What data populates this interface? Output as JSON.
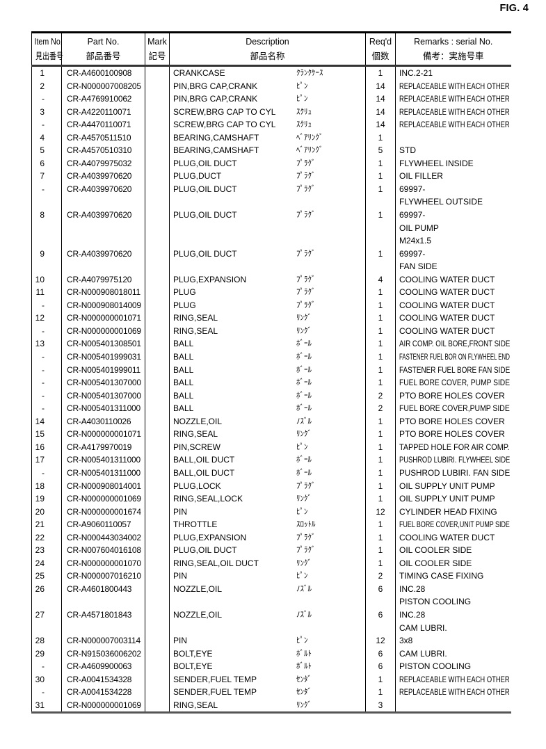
{
  "figure_label": "FIG. 4",
  "table": {
    "headers": {
      "item": {
        "en": "Item No.",
        "jp": "見出番号"
      },
      "part": {
        "en": "Part No.",
        "jp": "部品番号"
      },
      "mark": {
        "en": "Mark",
        "jp": "記号"
      },
      "desc": {
        "en": "Description",
        "jp": "部品名称"
      },
      "qty": {
        "en": "Req'd",
        "jp": "個数"
      },
      "remarks": {
        "en": "Remarks : serial No.",
        "jp": "備考：実施号車"
      }
    },
    "rows": [
      {
        "item": "1",
        "part": "CR-A4600100908",
        "mark": "",
        "desc": "CRANKCASE",
        "kana": "ｸﾗﾝｸｹｰｽ",
        "qty": "1",
        "remarks": [
          "INC.2-21"
        ]
      },
      {
        "item": "2",
        "part": "CR-N000007008205",
        "mark": "",
        "desc": "PIN,BRG CAP,CRANK",
        "kana": "ﾋﾟﾝ",
        "qty": "14",
        "remarks": [
          "REPLACEABLE WITH EACH OTHER"
        ]
      },
      {
        "item": "-",
        "part": "CR-A4769910062",
        "mark": "",
        "desc": "PIN,BRG CAP,CRANK",
        "kana": "ﾋﾟﾝ",
        "qty": "14",
        "remarks": [
          "REPLACEABLE WITH EACH OTHER"
        ]
      },
      {
        "item": "3",
        "part": "CR-A4220110071",
        "mark": "",
        "desc": "SCREW,BRG CAP TO CYL",
        "kana": "ｽｸﾘｭ",
        "qty": "14",
        "remarks": [
          "REPLACEABLE WITH EACH OTHER"
        ]
      },
      {
        "item": "-",
        "part": "CR-A4470110071",
        "mark": "",
        "desc": "SCREW,BRG CAP TO CYL",
        "kana": "ｽｸﾘｭ",
        "qty": "14",
        "remarks": [
          "REPLACEABLE WITH EACH OTHER"
        ]
      },
      {
        "item": "4",
        "part": "CR-A4570511510",
        "mark": "",
        "desc": "BEARING,CAMSHAFT",
        "kana": "ﾍﾞｱﾘﾝｸﾞ",
        "qty": "1",
        "remarks": []
      },
      {
        "item": "5",
        "part": "CR-A4570510310",
        "mark": "",
        "desc": "BEARING,CAMSHAFT",
        "kana": "ﾍﾞｱﾘﾝｸﾞ",
        "qty": "5",
        "remarks": [
          "STD"
        ]
      },
      {
        "item": "6",
        "part": "CR-A4079975032",
        "mark": "",
        "desc": "PLUG,OIL DUCT",
        "kana": "ﾌﾟﾗｸﾞ",
        "qty": "1",
        "remarks": [
          "FLYWHEEL INSIDE"
        ]
      },
      {
        "item": "7",
        "part": "CR-A4039970620",
        "mark": "",
        "desc": "PLUG,DUCT",
        "kana": "ﾌﾟﾗｸﾞ",
        "qty": "1",
        "remarks": [
          "OIL FILLER"
        ]
      },
      {
        "item": "-",
        "part": "CR-A4039970620",
        "mark": "",
        "desc": "PLUG,OIL DUCT",
        "kana": "ﾌﾟﾗｸﾞ",
        "qty": "1",
        "remarks": [
          "69997-",
          "FLYWHEEL OUTSIDE"
        ]
      },
      {
        "item": "8",
        "part": "CR-A4039970620",
        "mark": "",
        "desc": "PLUG,OIL DUCT",
        "kana": "ﾌﾟﾗｸﾞ",
        "qty": "1",
        "remarks": [
          "69997-",
          "OIL PUMP",
          "M24x1.5"
        ]
      },
      {
        "item": "9",
        "part": "CR-A4039970620",
        "mark": "",
        "desc": "PLUG,OIL DUCT",
        "kana": "ﾌﾟﾗｸﾞ",
        "qty": "1",
        "remarks": [
          "69997-",
          "FAN SIDE"
        ]
      },
      {
        "item": "10",
        "part": "CR-A4079975120",
        "mark": "",
        "desc": "PLUG,EXPANSION",
        "kana": "ﾌﾟﾗｸﾞ",
        "qty": "4",
        "remarks": [
          "COOLING WATER DUCT"
        ]
      },
      {
        "item": "11",
        "part": "CR-N000908018011",
        "mark": "",
        "desc": "PLUG",
        "kana": "ﾌﾟﾗｸﾞ",
        "qty": "1",
        "remarks": [
          "COOLING WATER DUCT"
        ]
      },
      {
        "item": "-",
        "part": "CR-N000908014009",
        "mark": "",
        "desc": "PLUG",
        "kana": "ﾌﾟﾗｸﾞ",
        "qty": "1",
        "remarks": [
          "COOLING WATER DUCT"
        ]
      },
      {
        "item": "12",
        "part": "CR-N000000001071",
        "mark": "",
        "desc": "RING,SEAL",
        "kana": "ﾘﾝｸﾞ",
        "qty": "1",
        "remarks": [
          "COOLING WATER DUCT"
        ]
      },
      {
        "item": "-",
        "part": "CR-N000000001069",
        "mark": "",
        "desc": "RING,SEAL",
        "kana": "ﾘﾝｸﾞ",
        "qty": "1",
        "remarks": [
          "COOLING WATER DUCT"
        ]
      },
      {
        "item": "13",
        "part": "CR-N005401308501",
        "mark": "",
        "desc": "BALL",
        "kana": "ﾎﾞｰﾙ",
        "qty": "1",
        "remarks": [
          "AIR COMP. OIL BORE,FRONT SIDE"
        ]
      },
      {
        "item": "-",
        "part": "CR-N005401999031",
        "mark": "",
        "desc": "BALL",
        "kana": "ﾎﾞｰﾙ",
        "qty": "1",
        "remarks": [
          "FASTENER FUEL BOR ON FLYWHEEL END"
        ]
      },
      {
        "item": "-",
        "part": "CR-N005401999011",
        "mark": "",
        "desc": "BALL",
        "kana": "ﾎﾞｰﾙ",
        "qty": "1",
        "remarks": [
          "FASTENER FUEL BORE FAN SIDE"
        ]
      },
      {
        "item": "-",
        "part": "CR-N005401307000",
        "mark": "",
        "desc": "BALL",
        "kana": "ﾎﾞｰﾙ",
        "qty": "1",
        "remarks": [
          "FUEL BORE COVER, PUMP SIDE"
        ]
      },
      {
        "item": "-",
        "part": "CR-N005401307000",
        "mark": "",
        "desc": "BALL",
        "kana": "ﾎﾞｰﾙ",
        "qty": "2",
        "remarks": [
          "PTO BORE HOLES COVER"
        ]
      },
      {
        "item": "-",
        "part": "CR-N005401311000",
        "mark": "",
        "desc": "BALL",
        "kana": "ﾎﾞｰﾙ",
        "qty": "2",
        "remarks": [
          "FUEL BORE COVER,PUMP SIDE"
        ]
      },
      {
        "item": "14",
        "part": "CR-A4030110026",
        "mark": "",
        "desc": "NOZZLE,OIL",
        "kana": "ﾉｽﾞﾙ",
        "qty": "1",
        "remarks": [
          "PTO BORE HOLES COVER"
        ]
      },
      {
        "item": "15",
        "part": "CR-N000000001071",
        "mark": "",
        "desc": "RING,SEAL",
        "kana": "ﾘﾝｸﾞ",
        "qty": "1",
        "remarks": [
          "PTO BORE HOLES COVER"
        ]
      },
      {
        "item": "16",
        "part": "CR-A4179970019",
        "mark": "",
        "desc": "PIN,SCREW",
        "kana": "ﾋﾟﾝ",
        "qty": "1",
        "remarks": [
          "TAPPED HOLE FOR AIR COMP."
        ]
      },
      {
        "item": "17",
        "part": "CR-N005401311000",
        "mark": "",
        "desc": "BALL,OIL DUCT",
        "kana": "ﾎﾞｰﾙ",
        "qty": "1",
        "remarks": [
          "PUSHROD LUBIRI. FLYWHEEL SIDE"
        ]
      },
      {
        "item": "-",
        "part": "CR-N005401311000",
        "mark": "",
        "desc": "BALL,OIL DUCT",
        "kana": "ﾎﾞｰﾙ",
        "qty": "1",
        "remarks": [
          "PUSHROD LUBIRI. FAN SIDE"
        ]
      },
      {
        "item": "18",
        "part": "CR-N000908014001",
        "mark": "",
        "desc": "PLUG,LOCK",
        "kana": "ﾌﾟﾗｸﾞ",
        "qty": "1",
        "remarks": [
          "OIL SUPPLY UNIT PUMP"
        ]
      },
      {
        "item": "19",
        "part": "CR-N000000001069",
        "mark": "",
        "desc": "RING,SEAL,LOCK",
        "kana": "ﾘﾝｸﾞ",
        "qty": "1",
        "remarks": [
          "OIL SUPPLY UNIT PUMP"
        ]
      },
      {
        "item": "20",
        "part": "CR-N000000001674",
        "mark": "",
        "desc": "PIN",
        "kana": "ﾋﾟﾝ",
        "qty": "12",
        "remarks": [
          "CYLINDER HEAD FIXING"
        ]
      },
      {
        "item": "21",
        "part": "CR-A9060110057",
        "mark": "",
        "desc": "THROTTLE",
        "kana": "ｽﾛｯﾄﾙ",
        "qty": "1",
        "remarks": [
          "FUEL BORE COVER,UNIT PUMP SIDE"
        ]
      },
      {
        "item": "22",
        "part": "CR-N000443034002",
        "mark": "",
        "desc": "PLUG,EXPANSION",
        "kana": "ﾌﾟﾗｸﾞ",
        "qty": "1",
        "remarks": [
          "COOLING WATER DUCT"
        ]
      },
      {
        "item": "23",
        "part": "CR-N007604016108",
        "mark": "",
        "desc": "PLUG,OIL DUCT",
        "kana": "ﾌﾟﾗｸﾞ",
        "qty": "1",
        "remarks": [
          "OIL COOLER SIDE"
        ]
      },
      {
        "item": "24",
        "part": "CR-N000000001070",
        "mark": "",
        "desc": "RING,SEAL,OIL DUCT",
        "kana": "ﾘﾝｸﾞ",
        "qty": "1",
        "remarks": [
          "OIL COOLER SIDE"
        ]
      },
      {
        "item": "25",
        "part": "CR-N000007016210",
        "mark": "",
        "desc": "PIN",
        "kana": "ﾋﾟﾝ",
        "qty": "2",
        "remarks": [
          "TIMING CASE FIXING"
        ]
      },
      {
        "item": "26",
        "part": "CR-A4601800443",
        "mark": "",
        "desc": "NOZZLE,OIL",
        "kana": "ﾉｽﾞﾙ",
        "qty": "6",
        "remarks": [
          "INC.28",
          "PISTON COOLING"
        ]
      },
      {
        "item": "27",
        "part": "CR-A4571801843",
        "mark": "",
        "desc": "NOZZLE,OIL",
        "kana": "ﾉｽﾞﾙ",
        "qty": "6",
        "remarks": [
          "INC.28",
          "CAM LUBRI."
        ]
      },
      {
        "item": "28",
        "part": "CR-N000007003114",
        "mark": "",
        "desc": "PIN",
        "kana": "ﾋﾟﾝ",
        "qty": "12",
        "remarks": [
          "3x8"
        ]
      },
      {
        "item": "29",
        "part": "CR-N915036006202",
        "mark": "",
        "desc": "BOLT,EYE",
        "kana": "ﾎﾞﾙﾄ",
        "qty": "6",
        "remarks": [
          "CAM LUBRI."
        ]
      },
      {
        "item": "-",
        "part": "CR-A4609900063",
        "mark": "",
        "desc": "BOLT,EYE",
        "kana": "ﾎﾞﾙﾄ",
        "qty": "6",
        "remarks": [
          "PISTON COOLING"
        ]
      },
      {
        "item": "30",
        "part": "CR-A0041534328",
        "mark": "",
        "desc": "SENDER,FUEL TEMP",
        "kana": "ｾﾝﾀﾞ",
        "qty": "1",
        "remarks": [
          "REPLACEABLE WITH EACH OTHER"
        ]
      },
      {
        "item": "-",
        "part": "CR-A0041534228",
        "mark": "",
        "desc": "SENDER,FUEL TEMP",
        "kana": "ｾﾝﾀﾞ",
        "qty": "1",
        "remarks": [
          "REPLACEABLE WITH EACH OTHER"
        ]
      },
      {
        "item": "31",
        "part": "CR-N000000001069",
        "mark": "",
        "desc": "RING,SEAL",
        "kana": "ﾘﾝｸﾞ",
        "qty": "3",
        "remarks": []
      }
    ]
  }
}
